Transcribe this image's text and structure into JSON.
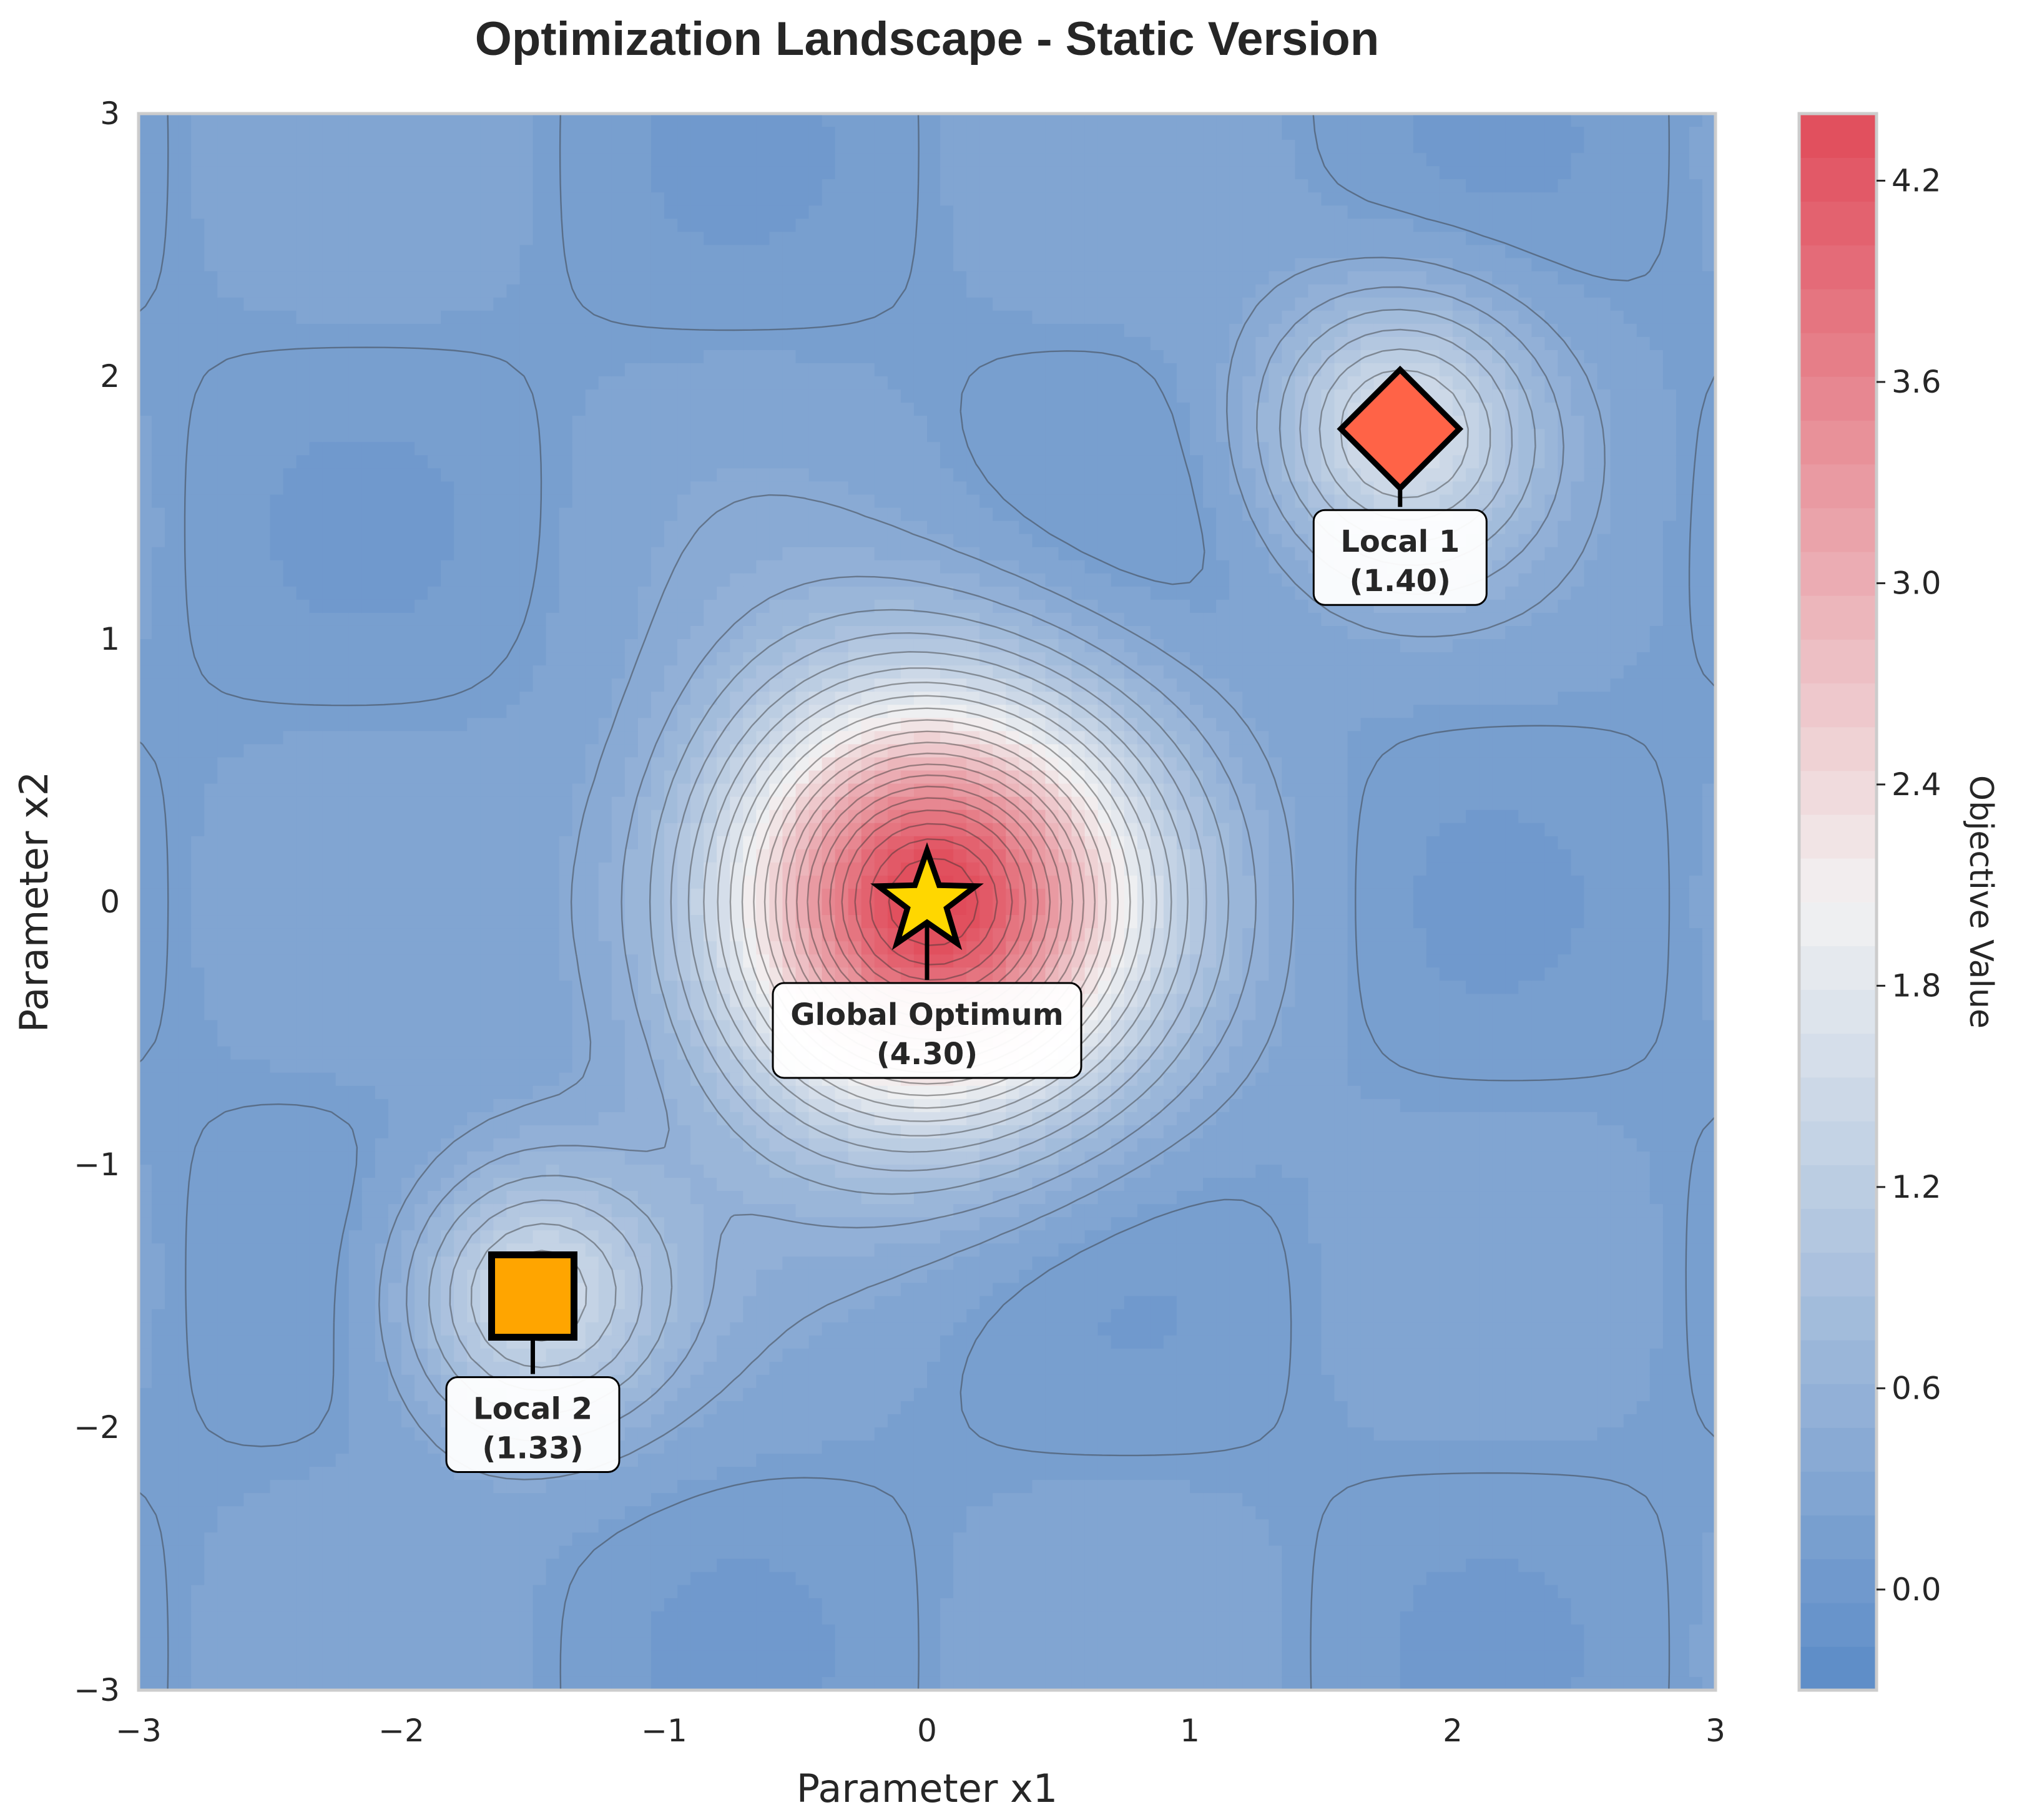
{
  "chart_data": {
    "type": "contour",
    "title": "Optimization Landscape - Static Version",
    "xlabel": "Parameter x1",
    "ylabel": "Parameter x2",
    "xlim": [
      -3,
      3
    ],
    "ylim": [
      -3,
      3
    ],
    "xticks": [
      "−3",
      "−2",
      "−1",
      "0",
      "1",
      "2",
      "3"
    ],
    "xtick_values": [
      -3,
      -2,
      -1,
      0,
      1,
      2,
      3
    ],
    "yticks": [
      "−3",
      "−2",
      "−1",
      "0",
      "1",
      "2",
      "3"
    ],
    "ytick_values": [
      -3,
      -2,
      -1,
      0,
      1,
      2,
      3
    ],
    "grid": false,
    "colormap": {
      "low": "#5b8bc7",
      "mid": "#f2f2f2",
      "high": "#e04b5a"
    },
    "colorbar": {
      "label": "Objective Value",
      "range": [
        -0.3,
        4.4
      ],
      "ticks": [
        "0.0",
        "0.6",
        "1.2",
        "1.8",
        "2.4",
        "3.0",
        "3.6",
        "4.2"
      ],
      "tick_values": [
        0.0,
        0.6,
        1.2,
        1.8,
        2.4,
        3.0,
        3.6,
        4.2
      ]
    },
    "peaks": [
      {
        "name": "Global Optimum",
        "x": 0.0,
        "y": 0.0,
        "value": 4.3,
        "label": "Global Optimum",
        "value_label": "(4.30)",
        "marker": "star",
        "color": "#ffd700"
      },
      {
        "name": "Local 1",
        "x": 1.8,
        "y": 1.8,
        "value": 1.4,
        "label": "Local 1",
        "value_label": "(1.40)",
        "marker": "diamond",
        "color": "#ff6347"
      },
      {
        "name": "Local 2",
        "x": -1.5,
        "y": -1.5,
        "value": 1.33,
        "label": "Local 2",
        "value_label": "(1.33)",
        "marker": "square",
        "color": "#ffa500"
      }
    ]
  }
}
